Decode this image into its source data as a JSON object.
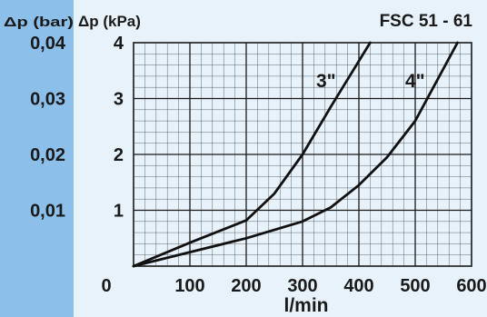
{
  "chart_data": {
    "type": "line",
    "title": "FSC 51 - 61",
    "xlabel": "l/min",
    "ylabel": "Δp (kPa)",
    "y2label": "Δp (bar)",
    "xlim": [
      0,
      600
    ],
    "ylim": [
      0,
      4
    ],
    "x_ticks": [
      "0",
      "100",
      "200",
      "300",
      "400",
      "500",
      "600"
    ],
    "y_ticks": [
      "1",
      "2",
      "3",
      "4"
    ],
    "y2_ticks": [
      "0,01",
      "0,02",
      "0,03",
      "0,04"
    ],
    "grid": true,
    "series": [
      {
        "name": "3\"",
        "x": [
          0,
          100,
          200,
          250,
          300,
          350,
          420
        ],
        "y": [
          0,
          0.42,
          0.82,
          1.3,
          2.0,
          2.85,
          4.0
        ]
      },
      {
        "name": "4\"",
        "x": [
          0,
          100,
          200,
          300,
          350,
          400,
          450,
          500,
          575
        ],
        "y": [
          0,
          0.25,
          0.5,
          0.8,
          1.05,
          1.45,
          1.95,
          2.6,
          4.0
        ]
      }
    ]
  },
  "colors": {
    "left_panel": "#8cc0ea",
    "plot_background": "#e7f2fb",
    "grid": "#1a1a1a",
    "curve": "#111111"
  }
}
